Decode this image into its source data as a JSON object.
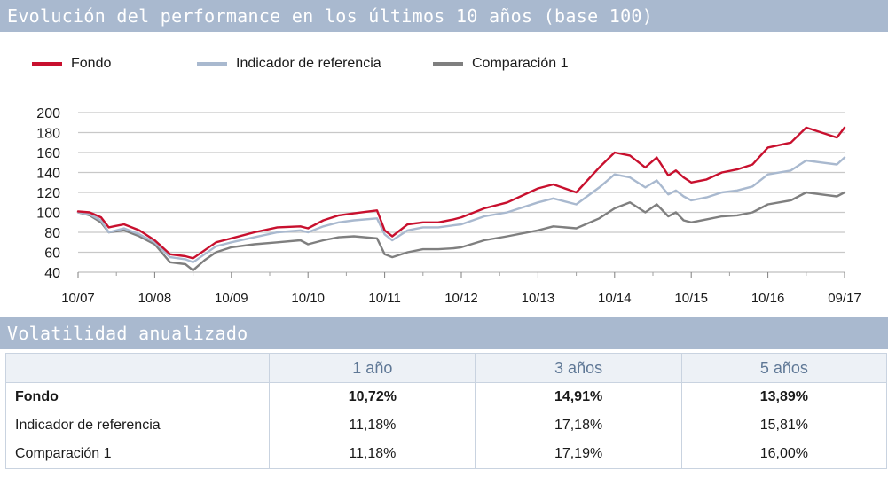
{
  "header": {
    "performance_title": "Evolución del performance en los últimos 10 años  (base 100)",
    "volatility_title": "Volatilidad anualizado"
  },
  "legend": [
    {
      "label": "Fondo",
      "color": "#c8102e"
    },
    {
      "label": "Indicador de referencia",
      "color": "#a9b9cf"
    },
    {
      "label": "Comparación 1",
      "color": "#7f7f7f"
    }
  ],
  "chart_data": {
    "type": "line",
    "title": "Evolución del performance en los últimos 10 años (base 100)",
    "xlabel": "",
    "ylabel": "",
    "ylim": [
      40,
      200
    ],
    "yticks": [
      40,
      60,
      80,
      100,
      120,
      140,
      160,
      180,
      200
    ],
    "x_labels": [
      "10/07",
      "10/08",
      "10/09",
      "10/10",
      "10/11",
      "10/12",
      "10/13",
      "10/14",
      "10/15",
      "10/16",
      "09/17"
    ],
    "x_tick_positions": [
      0,
      1,
      2,
      3,
      4,
      5,
      6,
      7,
      8,
      9,
      10
    ],
    "grid": true,
    "series": [
      {
        "name": "Fondo",
        "color": "#c8102e",
        "x": [
          0,
          0.15,
          0.3,
          0.4,
          0.6,
          0.8,
          1.0,
          1.2,
          1.4,
          1.5,
          1.65,
          1.8,
          2.0,
          2.3,
          2.6,
          2.9,
          3.0,
          3.2,
          3.4,
          3.6,
          3.9,
          4.0,
          4.1,
          4.3,
          4.5,
          4.7,
          4.9,
          5.0,
          5.3,
          5.6,
          6.0,
          6.2,
          6.5,
          6.8,
          7.0,
          7.2,
          7.4,
          7.55,
          7.7,
          7.8,
          7.9,
          8.0,
          8.2,
          8.4,
          8.6,
          8.8,
          9.0,
          9.3,
          9.5,
          9.7,
          9.9,
          10.0
        ],
        "y": [
          101,
          100,
          95,
          85,
          88,
          82,
          72,
          58,
          56,
          54,
          62,
          70,
          74,
          80,
          85,
          86,
          84,
          92,
          97,
          99,
          102,
          82,
          76,
          88,
          90,
          90,
          93,
          95,
          104,
          110,
          124,
          128,
          120,
          145,
          160,
          157,
          145,
          155,
          137,
          142,
          135,
          130,
          133,
          140,
          143,
          148,
          165,
          170,
          185,
          180,
          175,
          185
        ]
      },
      {
        "name": "Indicador de referencia",
        "color": "#a9b9cf",
        "x": [
          0,
          0.15,
          0.3,
          0.4,
          0.6,
          0.8,
          1.0,
          1.2,
          1.4,
          1.5,
          1.65,
          1.8,
          2.0,
          2.3,
          2.6,
          2.9,
          3.0,
          3.2,
          3.4,
          3.6,
          3.9,
          4.0,
          4.1,
          4.3,
          4.5,
          4.7,
          4.9,
          5.0,
          5.3,
          5.6,
          6.0,
          6.2,
          6.5,
          6.8,
          7.0,
          7.2,
          7.4,
          7.55,
          7.7,
          7.8,
          7.9,
          8.0,
          8.2,
          8.4,
          8.6,
          8.8,
          9.0,
          9.3,
          9.5,
          9.7,
          9.9,
          10.0
        ],
        "y": [
          100,
          98,
          92,
          80,
          84,
          78,
          70,
          55,
          53,
          50,
          58,
          66,
          70,
          75,
          80,
          82,
          80,
          86,
          90,
          92,
          94,
          78,
          72,
          82,
          85,
          85,
          87,
          88,
          96,
          100,
          110,
          114,
          108,
          125,
          138,
          135,
          125,
          132,
          118,
          122,
          116,
          112,
          115,
          120,
          122,
          126,
          138,
          142,
          152,
          150,
          148,
          155
        ]
      },
      {
        "name": "Comparación 1",
        "color": "#7f7f7f",
        "x": [
          0,
          0.15,
          0.3,
          0.4,
          0.6,
          0.8,
          1.0,
          1.2,
          1.4,
          1.5,
          1.65,
          1.8,
          2.0,
          2.3,
          2.6,
          2.9,
          3.0,
          3.2,
          3.4,
          3.6,
          3.9,
          4.0,
          4.1,
          4.3,
          4.5,
          4.7,
          4.9,
          5.0,
          5.3,
          5.6,
          6.0,
          6.2,
          6.5,
          6.8,
          7.0,
          7.2,
          7.4,
          7.55,
          7.7,
          7.8,
          7.9,
          8.0,
          8.2,
          8.4,
          8.6,
          8.8,
          9.0,
          9.3,
          9.5,
          9.7,
          9.9,
          10.0
        ],
        "y": [
          100,
          97,
          90,
          80,
          82,
          76,
          68,
          50,
          48,
          42,
          52,
          60,
          65,
          68,
          70,
          72,
          68,
          72,
          75,
          76,
          74,
          58,
          55,
          60,
          63,
          63,
          64,
          65,
          72,
          76,
          82,
          86,
          84,
          94,
          104,
          110,
          100,
          108,
          96,
          100,
          92,
          90,
          93,
          96,
          97,
          100,
          108,
          112,
          120,
          118,
          116,
          120
        ]
      }
    ]
  },
  "volatility_table": {
    "headers": [
      "",
      "1 año",
      "3 años",
      "5 años"
    ],
    "rows": [
      {
        "label": "Fondo",
        "values": [
          "10,72%",
          "14,91%",
          "13,89%"
        ],
        "bold": true
      },
      {
        "label": "Indicador de referencia",
        "values": [
          "11,18%",
          "17,18%",
          "15,81%"
        ],
        "bold": false
      },
      {
        "label": "Comparación 1",
        "values": [
          "11,18%",
          "17,19%",
          "16,00%"
        ],
        "bold": false
      }
    ]
  }
}
